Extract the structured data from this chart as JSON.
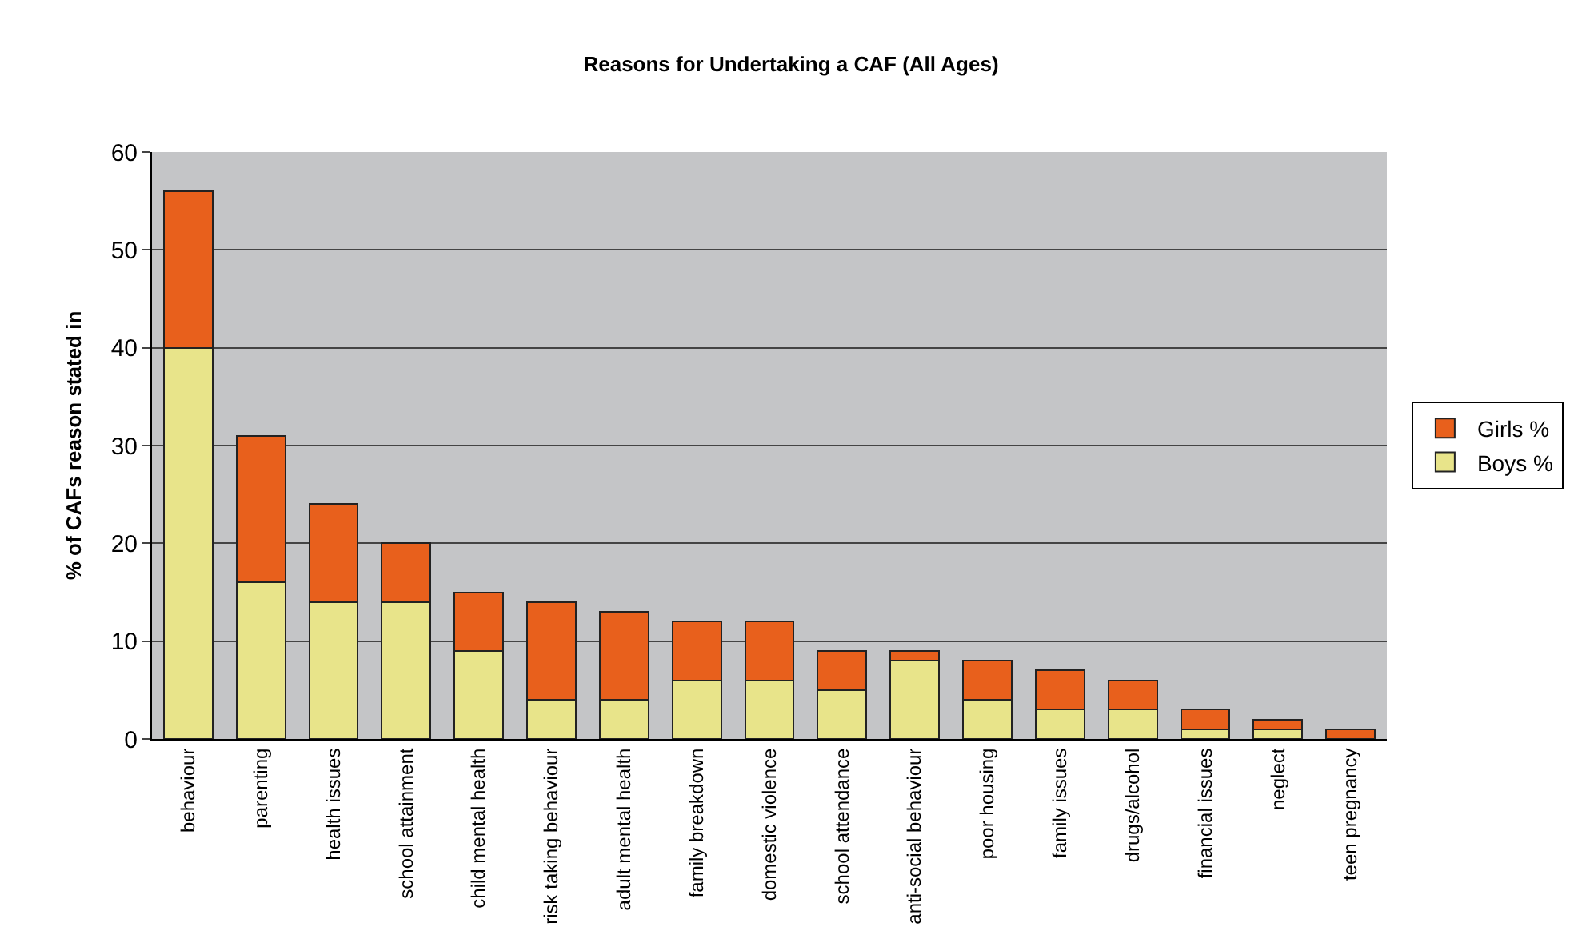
{
  "chart_data": {
    "type": "bar",
    "title": "Reasons for Undertaking a CAF (All Ages)",
    "ylabel": "% of CAFs reason stated in",
    "categories": [
      "behaviour",
      "parenting",
      "health issues",
      "school attainment",
      "child mental health",
      "risk taking behaviour",
      "adult mental health",
      "family breakdown",
      "domestic violence",
      "school attendance",
      "anti-social behaviour",
      "poor housing",
      "family issues",
      "drugs/alcohol",
      "financial issues",
      "neglect",
      "teen pregnancy"
    ],
    "stacked": true,
    "series": [
      {
        "name": "Boys %",
        "color": "#e8e48a",
        "values": [
          40,
          16,
          14,
          14,
          9,
          4,
          4,
          6,
          6,
          5,
          8,
          4,
          3,
          3,
          1,
          1,
          0
        ]
      },
      {
        "name": "Girls %",
        "color": "#e8601c",
        "values": [
          16,
          15,
          10,
          6,
          6,
          10,
          9,
          6,
          6,
          4,
          1,
          4,
          4,
          3,
          2,
          1,
          1
        ]
      }
    ],
    "ylim": [
      0,
      60
    ],
    "yticks": [
      0,
      10,
      20,
      30,
      40,
      50,
      60
    ],
    "grid": "y",
    "legend": "right"
  }
}
